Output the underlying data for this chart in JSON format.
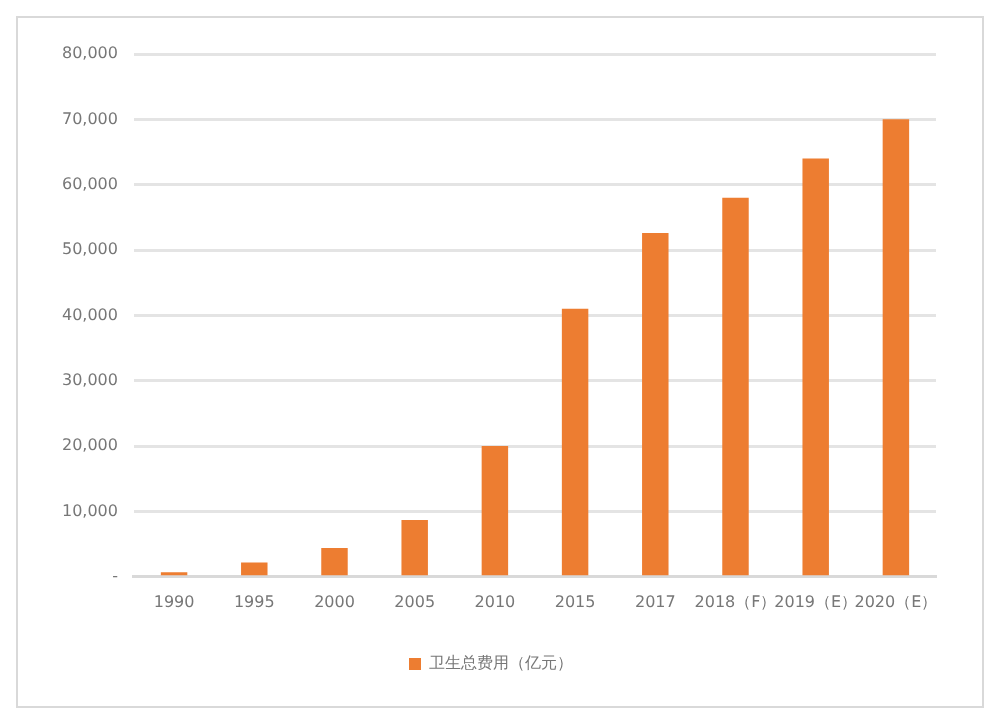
{
  "chart_data": {
    "type": "bar",
    "categories": [
      "1990",
      "1995",
      "2000",
      "2005",
      "2010",
      "2015",
      "2017",
      "2018（F）",
      "2019（E）",
      "2020（E）"
    ],
    "series": [
      {
        "name": "卫生总费用（亿元）",
        "color": "#ed7d31",
        "values": [
          700,
          2200,
          4400,
          8700,
          20000,
          41000,
          52600,
          58000,
          64000,
          70000
        ]
      }
    ],
    "ylim": [
      0,
      80000
    ],
    "yticks": [
      {
        "value": 0,
        "label": "-"
      },
      {
        "value": 10000,
        "label": "10,000"
      },
      {
        "value": 20000,
        "label": "20,000"
      },
      {
        "value": 30000,
        "label": "30,000"
      },
      {
        "value": 40000,
        "label": "40,000"
      },
      {
        "value": 50000,
        "label": "50,000"
      },
      {
        "value": 60000,
        "label": "60,000"
      },
      {
        "value": 70000,
        "label": "70,000"
      },
      {
        "value": 80000,
        "label": "80,000"
      }
    ],
    "grid": "y",
    "legend": "bottom"
  }
}
